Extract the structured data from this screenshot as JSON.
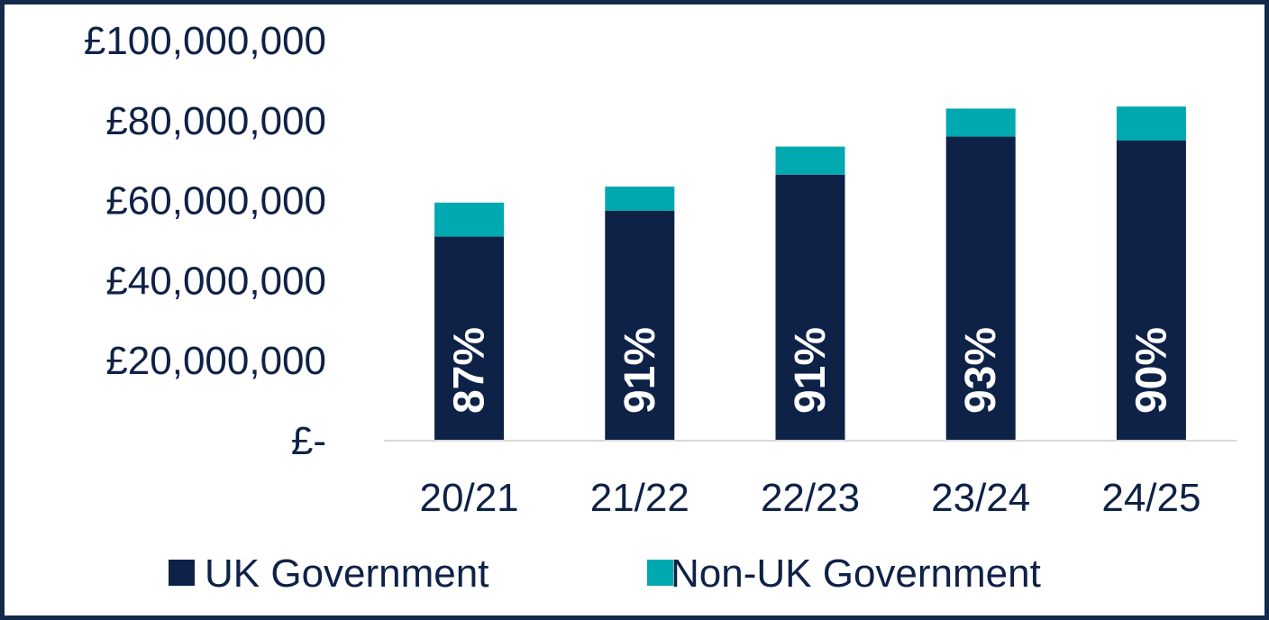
{
  "chart_data": {
    "type": "bar",
    "stacked": true,
    "categories": [
      "20/21",
      "21/22",
      "22/23",
      "23/24",
      "24/25"
    ],
    "series": [
      {
        "name": "UK Government",
        "color": "#0e2147",
        "values": [
          51000000,
          57500000,
          66500000,
          76000000,
          75000000
        ],
        "labels": [
          "87%",
          "91%",
          "91%",
          "93%",
          "90%"
        ]
      },
      {
        "name": "Non-UK Government",
        "color": "#00a8b0",
        "values": [
          8500000,
          6000000,
          7000000,
          7000000,
          8500000
        ]
      }
    ],
    "ylim": [
      0,
      100000000
    ],
    "yticks": [
      0,
      20000000,
      40000000,
      60000000,
      80000000,
      100000000
    ],
    "ytick_labels": [
      "£-",
      "£20,000,000",
      "£40,000,000",
      "£60,000,000",
      "£80,000,000",
      "£100,000,000"
    ],
    "legend_position": "bottom",
    "grid": false
  }
}
